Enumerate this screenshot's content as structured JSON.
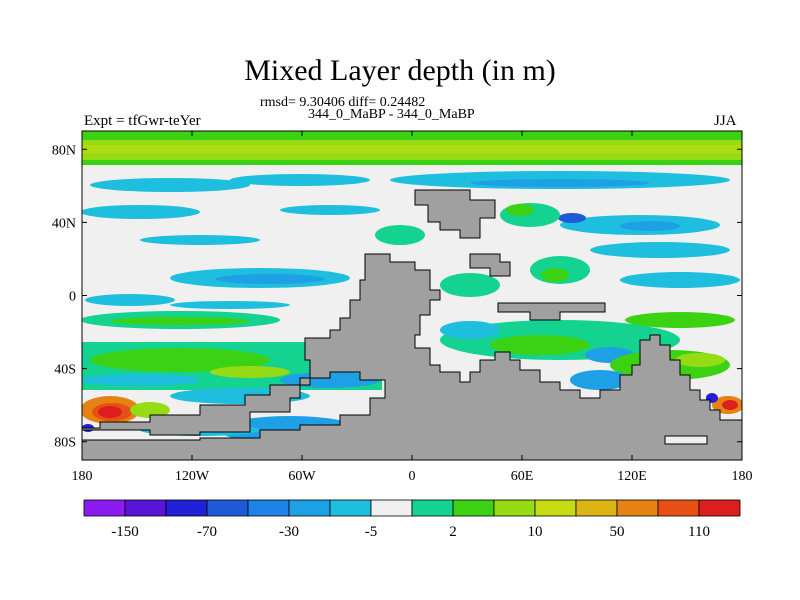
{
  "header": {
    "title": "Mixed Layer depth (in m)",
    "stats": "rmsd= 9.30406 diff= 0.24482",
    "experiment_line": "344_0_MaBP - 344_0_MaBP",
    "left_label": "Expt = tfGwr-teYer",
    "season": "JJA"
  },
  "axes": {
    "x_ticks": [
      {
        "lon": -180,
        "label": "180"
      },
      {
        "lon": -120,
        "label": "120W"
      },
      {
        "lon": -60,
        "label": "60W"
      },
      {
        "lon": 0,
        "label": "0"
      },
      {
        "lon": 60,
        "label": "60E"
      },
      {
        "lon": 120,
        "label": "120E"
      },
      {
        "lon": 180,
        "label": "180"
      }
    ],
    "y_ticks": [
      {
        "lat": 80,
        "label": "80N"
      },
      {
        "lat": 40,
        "label": "40N"
      },
      {
        "lat": 0,
        "label": "0"
      },
      {
        "lat": -40,
        "label": "40S"
      },
      {
        "lat": -80,
        "label": "80S"
      }
    ],
    "lon_range": [
      -180,
      180
    ],
    "lat_range": [
      -90,
      90
    ]
  },
  "colorbar": {
    "colors": [
      "#8a1cf0",
      "#5a14d8",
      "#2020d8",
      "#1e5ad8",
      "#1e82e6",
      "#1ea0e6",
      "#1ebede",
      "#f0f0f0",
      "#14d290",
      "#3cd214",
      "#96dc14",
      "#c8dc14",
      "#dcb414",
      "#e68214",
      "#e65014",
      "#dc1e1e"
    ],
    "labels": [
      {
        "boundary": 1,
        "text": "-150"
      },
      {
        "boundary": 3,
        "text": "-70"
      },
      {
        "boundary": 5,
        "text": "-30"
      },
      {
        "boundary": 7,
        "text": "-5"
      },
      {
        "boundary": 9,
        "text": "2"
      },
      {
        "boundary": 11,
        "text": "10"
      },
      {
        "boundary": 13,
        "text": "50"
      },
      {
        "boundary": 15,
        "text": "110"
      }
    ]
  },
  "colors": {
    "land": "#a0a0a0",
    "neutral": "#f0f0f0",
    "deep_positive": "#dc1e1e",
    "positive_mid": "#96dc14",
    "negative_mid": "#1ebede"
  }
}
